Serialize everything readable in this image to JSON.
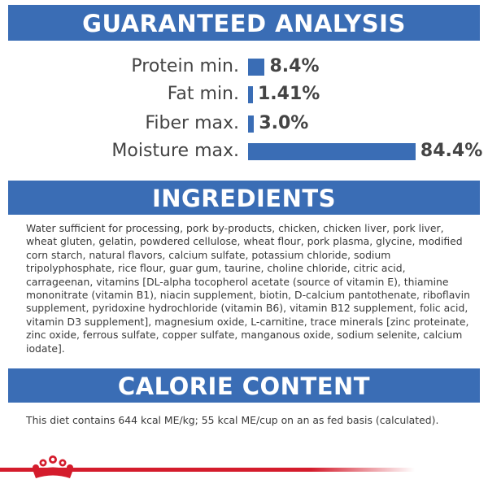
{
  "guaranteed_analysis": {
    "title": "GUARANTEED ANALYSIS",
    "rows": [
      {
        "label": "Protein min.",
        "value": "8.4%",
        "percent": 8.4
      },
      {
        "label": "Fat min.",
        "value": "1.41%",
        "percent": 1.41
      },
      {
        "label": "Fiber max.",
        "value": "3.0%",
        "percent": 3.0
      },
      {
        "label": "Moisture max.",
        "value": "84.4%",
        "percent": 84.4
      }
    ]
  },
  "ingredients": {
    "title": "INGREDIENTS",
    "text": "Water sufficient for processing, pork by-products, chicken, chicken liver, pork liver, wheat gluten, gelatin, powdered cellulose, wheat flour, pork plasma, glycine, modified corn starch, natural flavors, calcium sulfate, potassium chloride, sodium tripolyphosphate, rice flour, guar gum, taurine, choline chloride, citric acid, carrageenan, vitamins [DL-alpha tocopherol acetate (source of vitamin E), thiamine mononitrate (vitamin B1), niacin supplement, biotin, D-calcium pantothenate, riboflavin supplement, pyridoxine hydrochloride (vitamin B6), vitamin B12 supplement, folic acid, vitamin D3 supplement], magnesium oxide, L-carnitine, trace minerals [zinc proteinate, zinc oxide, ferrous sulfate, copper sulfate, manganous oxide, sodium selenite, calcium iodate]."
  },
  "calorie_content": {
    "title": "CALORIE CONTENT",
    "text": "This diet contains 644 kcal ME/kg; 55 kcal ME/cup on an as fed basis (calculated)."
  },
  "colors": {
    "banner_blue": "#3a6db5",
    "bar_blue": "#3a6db5",
    "footer_red": "#d41c2c"
  },
  "footer": {
    "logo_icon": "crown-icon"
  }
}
